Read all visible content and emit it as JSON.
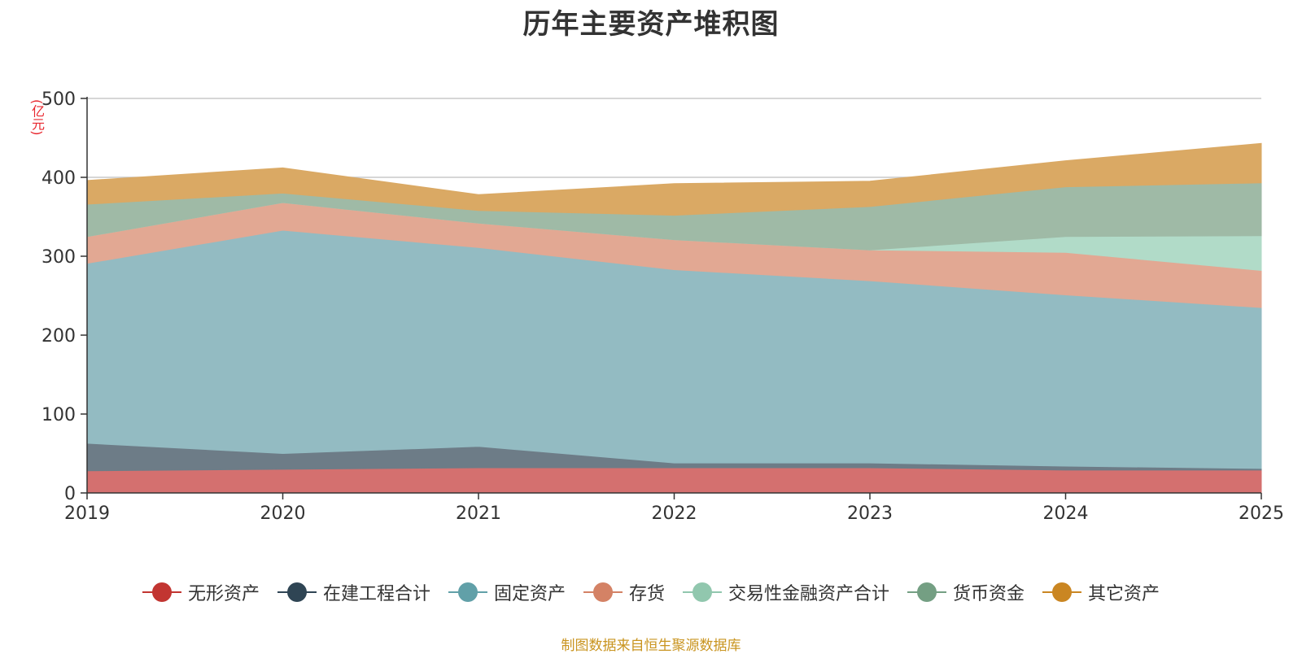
{
  "chart_data": {
    "type": "area",
    "stacked": true,
    "title": "历年主要资产堆积图",
    "unit_label": "(亿元)",
    "source_note": "制图数据来自恒生聚源数据库",
    "x": [
      "2019",
      "2020",
      "2021",
      "2022",
      "2023",
      "2024",
      "2025"
    ],
    "ylim": [
      0,
      500
    ],
    "yticks": [
      0,
      100,
      200,
      300,
      400,
      500
    ],
    "grid": true,
    "legend_position": "bottom",
    "series": [
      {
        "name": "无形资产",
        "color": "#c23531",
        "area_color": "#d4706f",
        "values": [
          28,
          30,
          32,
          32,
          32,
          29,
          29
        ]
      },
      {
        "name": "在建工程合计",
        "color": "#2f4554",
        "area_color": "#6d7c87",
        "values": [
          35,
          20,
          27,
          6,
          6,
          5,
          2
        ]
      },
      {
        "name": "固定资产",
        "color": "#61a0a8",
        "area_color": "#93bbc2",
        "values": [
          228,
          283,
          252,
          245,
          231,
          217,
          204
        ]
      },
      {
        "name": "存货",
        "color": "#d48265",
        "area_color": "#e2a893",
        "values": [
          34,
          35,
          31,
          38,
          39,
          54,
          47
        ]
      },
      {
        "name": "交易性金融资产合计",
        "color": "#91c7ae",
        "area_color": "#b1dbc8",
        "values": [
          0,
          0,
          0,
          0,
          0,
          20,
          44
        ]
      },
      {
        "name": "货币资金",
        "color": "#749f83",
        "area_color": "#9fbaa6",
        "values": [
          41,
          12,
          16,
          31,
          55,
          63,
          67
        ]
      },
      {
        "name": "其它资产",
        "color": "#ca8622",
        "area_color": "#daa964",
        "values": [
          30,
          32,
          20,
          40,
          32,
          33,
          50
        ]
      }
    ]
  }
}
